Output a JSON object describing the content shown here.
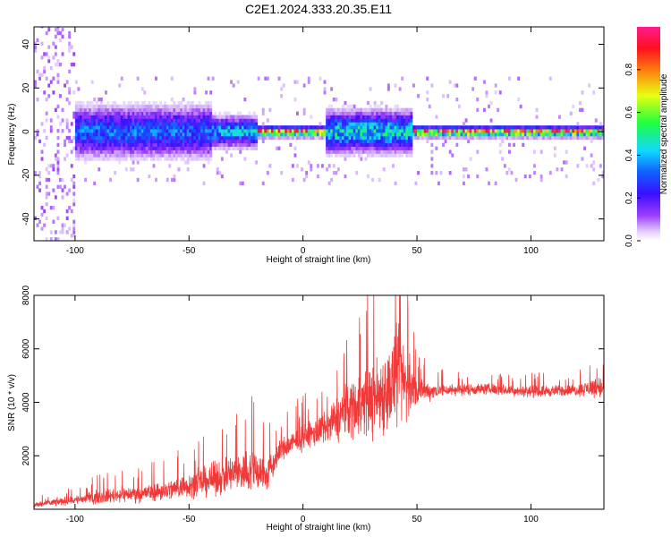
{
  "title": "C2E1.2024.333.20.35.E11",
  "colors": {
    "background": "#ffffff",
    "axes": "#000000",
    "snr_line": "#f03a3a",
    "spectrogram_background": "#ffffff"
  },
  "chart_data": [
    {
      "type": "heatmap",
      "title": "C2E1.2024.333.20.35.E11",
      "xlabel": "Height of straight line (km)",
      "ylabel": "Frequency (Hz)",
      "xlim": [
        -118,
        132
      ],
      "ylim": [
        -50,
        48
      ],
      "xticks": [
        -100,
        -50,
        0,
        50,
        100
      ],
      "yticks": [
        -40,
        -20,
        0,
        20,
        40
      ],
      "grid": false,
      "colormap": "rainbow (white → violet → blue → cyan → green → yellow → red → magenta)",
      "colorbar": {
        "label": "Normalized spectral amplitude",
        "range": [
          0,
          1
        ],
        "ticks": [
          0.0,
          0.2,
          0.4,
          0.6,
          0.8
        ]
      },
      "features": [
        {
          "x_range": [
            -118,
            -100
          ],
          "freq_spread_hz": 50,
          "amplitude": 0.05,
          "note": "sparse scatter"
        },
        {
          "x_range": [
            -100,
            -40
          ],
          "freq_spread_hz": 10,
          "amplitude": 0.35
        },
        {
          "x_range": [
            -40,
            -20
          ],
          "freq_spread_hz": 6,
          "amplitude": 0.45
        },
        {
          "x_range": [
            -20,
            10
          ],
          "freq_spread_hz": 2,
          "amplitude": 0.95
        },
        {
          "x_range": [
            10,
            48
          ],
          "freq_spread_hz": 8,
          "amplitude": 0.5
        },
        {
          "x_range": [
            48,
            132
          ],
          "freq_spread_hz": 2,
          "amplitude": 0.95
        }
      ]
    },
    {
      "type": "line",
      "xlabel": "Height of straight line (km)",
      "ylabel": "SNR (10 * v/v)",
      "xlim": [
        -118,
        132
      ],
      "ylim": [
        0,
        8000
      ],
      "xticks": [
        -100,
        -50,
        0,
        50,
        100
      ],
      "yticks": [
        2000,
        4000,
        6000,
        8000
      ],
      "grid": false,
      "series": [
        {
          "color": "#f03a3a",
          "x": [
            -118,
            -110,
            -100,
            -90,
            -80,
            -70,
            -60,
            -50,
            -40,
            -30,
            -20,
            -16,
            -10,
            0,
            10,
            20,
            30,
            38,
            42,
            46,
            50,
            60,
            80,
            100,
            120,
            130,
            132
          ],
          "y": [
            150,
            250,
            350,
            450,
            550,
            600,
            700,
            900,
            1100,
            1350,
            1500,
            1200,
            2200,
            2700,
            3000,
            3800,
            4100,
            4500,
            5000,
            4600,
            4400,
            4450,
            4500,
            4400,
            4450,
            4600,
            4400
          ],
          "spread": [
            150,
            200,
            250,
            350,
            400,
            450,
            550,
            650,
            850,
            1050,
            1250,
            900,
            650,
            650,
            900,
            1600,
            2000,
            2400,
            2700,
            2000,
            700,
            350,
            300,
            300,
            300,
            600,
            600
          ]
        }
      ]
    }
  ]
}
